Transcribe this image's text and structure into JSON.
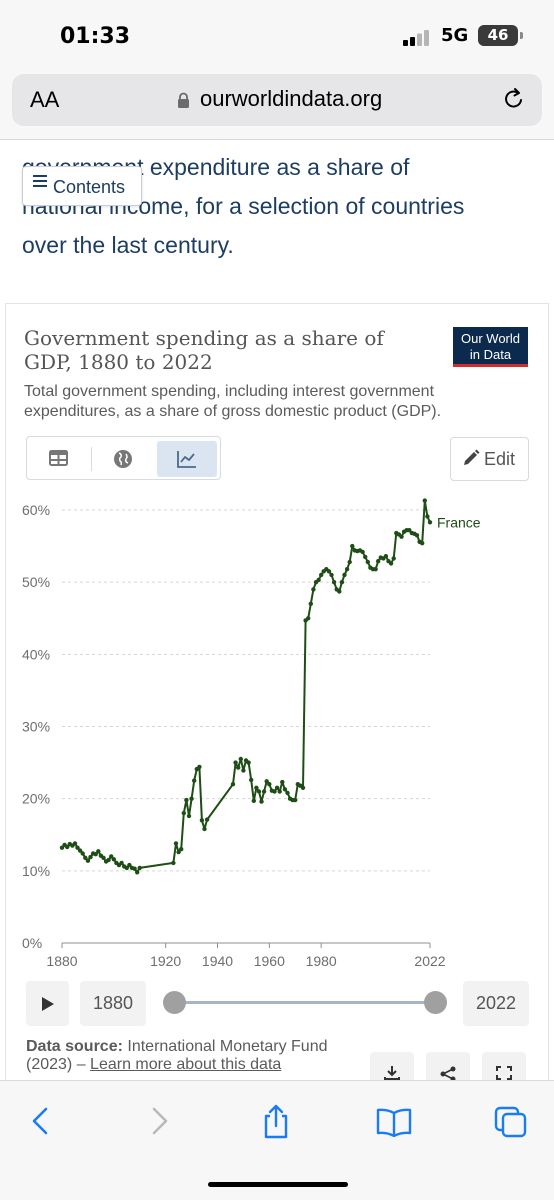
{
  "status_bar": {
    "time": "01:33",
    "network": "5G",
    "battery": "46"
  },
  "browser": {
    "text_size_label": "AA",
    "url": "ourworldindata.org"
  },
  "article": {
    "intro_lines": [
      "government expenditure as a share of",
      "national income, for a selection of countries",
      "over the last century."
    ],
    "contents_label": "Contents"
  },
  "chart_card": {
    "title_line1": "Government spending as a share of",
    "title_line2": "GDP, 1880 to 2022",
    "subtitle_line1": "Total government spending, including interest government",
    "subtitle_line2": "expenditures, as a share of gross domestic product (GDP).",
    "logo_line1": "Our World",
    "logo_line2": "in Data",
    "edit_label": "Edit",
    "accent_color": "#d12b2b",
    "logo_color": "#0c2a4e",
    "active_tab": "chart"
  },
  "chart_data": {
    "type": "line",
    "title": "Government spending as a share of GDP, 1880 to 2022",
    "xlabel": "",
    "ylabel": "",
    "xlim": [
      1880,
      2022
    ],
    "ylim": [
      0,
      60
    ],
    "x_ticks": [
      1880,
      1920,
      1940,
      1960,
      1980,
      2022
    ],
    "x_tick_labels": [
      "1880",
      "1920",
      "1940",
      "1960",
      "1980",
      "2022"
    ],
    "y_ticks": [
      0,
      10,
      20,
      30,
      40,
      50,
      60
    ],
    "y_tick_labels": [
      "0%",
      "10%",
      "20%",
      "30%",
      "40%",
      "50%",
      "60%"
    ],
    "grid": true,
    "legend": "right-end label",
    "series": [
      {
        "name": "France",
        "color": "#1f4d16",
        "points": [
          [
            1880,
            13.2
          ],
          [
            1881,
            13.6
          ],
          [
            1882,
            13.3
          ],
          [
            1883,
            13.7
          ],
          [
            1884,
            13.5
          ],
          [
            1885,
            13.8
          ],
          [
            1886,
            13.2
          ],
          [
            1887,
            12.8
          ],
          [
            1888,
            12.4
          ],
          [
            1889,
            11.8
          ],
          [
            1890,
            11.4
          ],
          [
            1891,
            11.9
          ],
          [
            1892,
            12.4
          ],
          [
            1893,
            12.3
          ],
          [
            1894,
            12.7
          ],
          [
            1895,
            12.1
          ],
          [
            1896,
            11.8
          ],
          [
            1897,
            11.3
          ],
          [
            1898,
            11.5
          ],
          [
            1899,
            12.0
          ],
          [
            1900,
            11.6
          ],
          [
            1901,
            11.1
          ],
          [
            1902,
            10.8
          ],
          [
            1903,
            11.1
          ],
          [
            1904,
            10.6
          ],
          [
            1905,
            10.4
          ],
          [
            1906,
            10.8
          ],
          [
            1907,
            10.4
          ],
          [
            1908,
            10.3
          ],
          [
            1909,
            9.8
          ],
          [
            1910,
            10.4
          ],
          [
            1923,
            11.1
          ],
          [
            1924,
            13.8
          ],
          [
            1925,
            12.6
          ],
          [
            1926,
            13.0
          ],
          [
            1927,
            18.0
          ],
          [
            1928,
            19.8
          ],
          [
            1929,
            17.6
          ],
          [
            1930,
            20.0
          ],
          [
            1931,
            22.5
          ],
          [
            1932,
            24.1
          ],
          [
            1933,
            24.4
          ],
          [
            1934,
            17.0
          ],
          [
            1935,
            15.8
          ],
          [
            1936,
            17.1
          ],
          [
            1946,
            22.0
          ],
          [
            1947,
            25.0
          ],
          [
            1948,
            24.3
          ],
          [
            1949,
            25.5
          ],
          [
            1950,
            23.9
          ],
          [
            1951,
            25.3
          ],
          [
            1952,
            25.0
          ],
          [
            1953,
            22.6
          ],
          [
            1954,
            19.7
          ],
          [
            1955,
            21.5
          ],
          [
            1956,
            21.0
          ],
          [
            1957,
            19.6
          ],
          [
            1958,
            21.0
          ],
          [
            1959,
            22.4
          ],
          [
            1960,
            22.0
          ],
          [
            1961,
            21.1
          ],
          [
            1962,
            21.0
          ],
          [
            1963,
            21.5
          ],
          [
            1964,
            21.0
          ],
          [
            1965,
            22.3
          ],
          [
            1966,
            21.3
          ],
          [
            1967,
            20.8
          ],
          [
            1968,
            20.0
          ],
          [
            1969,
            19.8
          ],
          [
            1970,
            19.8
          ],
          [
            1971,
            22.0
          ],
          [
            1972,
            21.8
          ],
          [
            1973,
            21.5
          ],
          [
            1974,
            44.7
          ],
          [
            1975,
            45.0
          ],
          [
            1976,
            47.0
          ],
          [
            1977,
            49.0
          ],
          [
            1978,
            50.0
          ],
          [
            1979,
            50.3
          ],
          [
            1980,
            51.0
          ],
          [
            1981,
            51.5
          ],
          [
            1982,
            51.8
          ],
          [
            1983,
            51.5
          ],
          [
            1984,
            51.0
          ],
          [
            1985,
            50.0
          ],
          [
            1986,
            49.0
          ],
          [
            1987,
            48.7
          ],
          [
            1988,
            50.0
          ],
          [
            1989,
            51.0
          ],
          [
            1990,
            51.8
          ],
          [
            1991,
            52.8
          ],
          [
            1992,
            55.0
          ],
          [
            1993,
            54.4
          ],
          [
            1994,
            54.3
          ],
          [
            1995,
            54.4
          ],
          [
            1996,
            54.2
          ],
          [
            1997,
            53.5
          ],
          [
            1998,
            52.8
          ],
          [
            1999,
            52.0
          ],
          [
            2000,
            51.8
          ],
          [
            2001,
            51.8
          ],
          [
            2002,
            52.9
          ],
          [
            2003,
            53.4
          ],
          [
            2004,
            53.3
          ],
          [
            2005,
            53.6
          ],
          [
            2006,
            52.9
          ],
          [
            2007,
            52.6
          ],
          [
            2008,
            53.3
          ],
          [
            2009,
            56.8
          ],
          [
            2010,
            56.6
          ],
          [
            2011,
            56.3
          ],
          [
            2012,
            57.0
          ],
          [
            2013,
            57.2
          ],
          [
            2014,
            57.2
          ],
          [
            2015,
            56.8
          ],
          [
            2016,
            56.7
          ],
          [
            2017,
            56.5
          ],
          [
            2018,
            55.6
          ],
          [
            2019,
            55.4
          ],
          [
            2020,
            61.3
          ],
          [
            2021,
            59.1
          ],
          [
            2022,
            58.3
          ]
        ]
      }
    ]
  },
  "timeline": {
    "start_year": "1880",
    "end_year": "2022"
  },
  "source": {
    "label": "Data source:",
    "text_line1": "International Monetary Fund",
    "text_line2": "(2023) –",
    "link": "Learn more about this data"
  }
}
